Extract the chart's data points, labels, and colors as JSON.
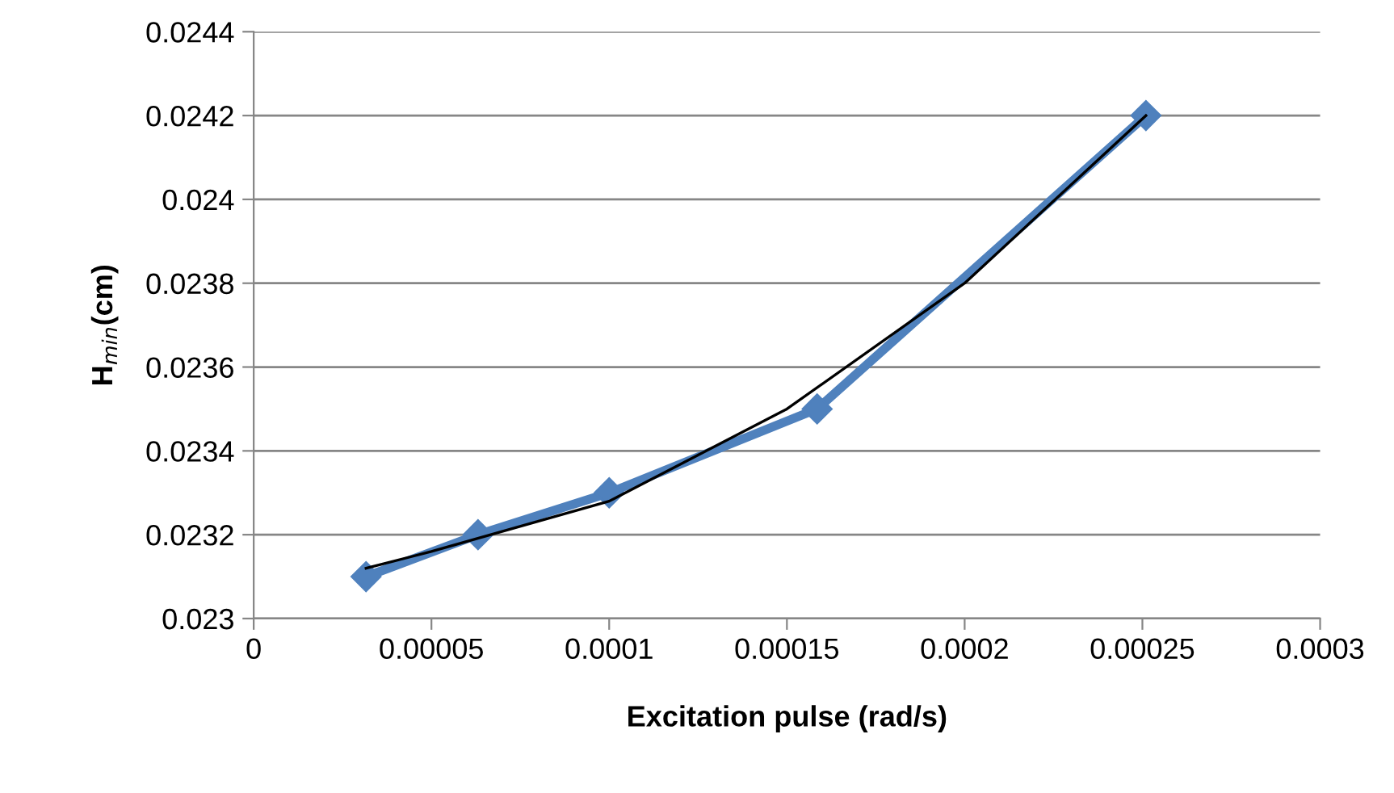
{
  "chart_data": {
    "type": "line",
    "xlabel": "Excitation pulse (rad/s)",
    "ylabel": "H$_{min}$(cm)",
    "series": [
      {
        "x": [
          3.16e-05,
          6.31e-05,
          0.0001,
          0.0001585,
          0.000251
        ],
        "values": [
          0.0231,
          0.0232,
          0.0233,
          0.0235,
          0.0242
        ],
        "color": "#4f81bd",
        "marker": "diamond"
      },
      {
        "type": "line",
        "x": [
          3.16e-05,
          5e-05,
          0.0001,
          0.00015,
          0.0002,
          0.000251
        ],
        "values": [
          0.02312,
          0.02316,
          0.02328,
          0.0235,
          0.0238,
          0.0242
        ],
        "color": "#000000",
        "marker": "none"
      }
    ],
    "xlim": [
      0,
      0.0003
    ],
    "xticks": [
      {
        "value": 0,
        "label": "0"
      },
      {
        "value": 5e-05,
        "label": "0.00005"
      },
      {
        "value": 0.0001,
        "label": "0.0001"
      },
      {
        "value": 0.00015,
        "label": "0.00015"
      },
      {
        "value": 0.0002,
        "label": "0.0002"
      },
      {
        "value": 0.00025,
        "label": "0.00025"
      },
      {
        "value": 0.0003,
        "label": "0.0003"
      }
    ],
    "ylim": [
      0.023,
      0.0244
    ],
    "yticks": [
      {
        "value": 0.023,
        "label": "0.023"
      },
      {
        "value": 0.0232,
        "label": "0.0232"
      },
      {
        "value": 0.0234,
        "label": "0.0234"
      },
      {
        "value": 0.0236,
        "label": "0.0236"
      },
      {
        "value": 0.0238,
        "label": "0.0238"
      },
      {
        "value": 0.024,
        "label": "0.024"
      },
      {
        "value": 0.0242,
        "label": "0.0242"
      },
      {
        "value": 0.0244,
        "label": "0.0244"
      }
    ],
    "grid": "y",
    "legend": false,
    "line_style": "solid"
  }
}
